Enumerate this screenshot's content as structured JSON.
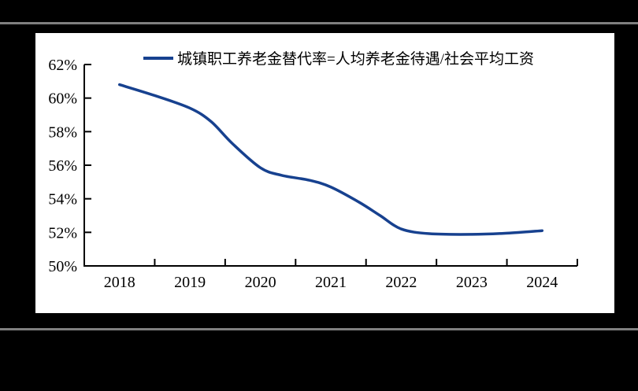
{
  "page": {
    "background": "#000000",
    "panel_background": "#ffffff",
    "separator_color": "#7f7f7f"
  },
  "chart_data": {
    "type": "line",
    "title": "",
    "xlabel": "",
    "ylabel": "",
    "unit": "%",
    "grid": false,
    "legend_position": "top-center",
    "categories": [
      "2018",
      "2019",
      "2020",
      "2021",
      "2022",
      "2023",
      "2024"
    ],
    "series": [
      {
        "name": "城镇职工养老金替代率=人均养老金待遇/社会平均工资",
        "values": [
          60.8,
          59.4,
          55.9,
          54.7,
          52.2,
          51.9,
          52.1
        ],
        "color": "#17418f"
      }
    ],
    "curve_points": [
      [
        2018.0,
        60.8
      ],
      [
        2018.5,
        60.15
      ],
      [
        2019.0,
        59.4
      ],
      [
        2019.3,
        58.6
      ],
      [
        2019.6,
        57.3
      ],
      [
        2020.0,
        55.85
      ],
      [
        2020.3,
        55.4
      ],
      [
        2020.7,
        55.1
      ],
      [
        2021.0,
        54.7
      ],
      [
        2021.4,
        53.8
      ],
      [
        2021.7,
        53.0
      ],
      [
        2022.0,
        52.2
      ],
      [
        2022.4,
        51.92
      ],
      [
        2023.0,
        51.88
      ],
      [
        2023.5,
        51.95
      ],
      [
        2024.0,
        52.1
      ]
    ],
    "ylim": [
      50,
      62
    ],
    "ytick_labels": [
      "62%",
      "60%",
      "58%",
      "56%",
      "54%",
      "52%",
      "50%"
    ],
    "line_width": 3.5,
    "axis_color": "#000000"
  }
}
